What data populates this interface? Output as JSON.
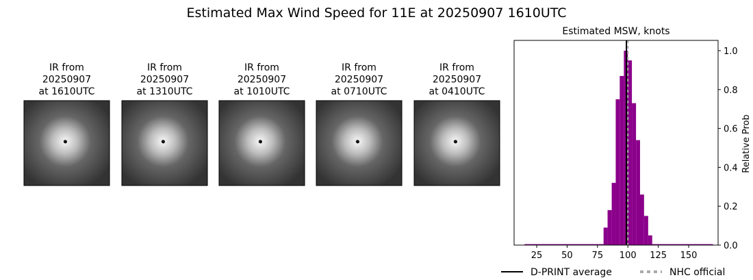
{
  "title": "Estimated Max Wind Speed for 11E at 20250907 1610UTC",
  "panels": [
    {
      "label": [
        "IR from",
        "20250907",
        "at 1610UTC"
      ]
    },
    {
      "label": [
        "IR from",
        "20250907",
        "at 1310UTC"
      ]
    },
    {
      "label": [
        "IR from",
        "20250907",
        "at 1010UTC"
      ]
    },
    {
      "label": [
        "IR from",
        "20250907",
        "at 0710UTC"
      ]
    },
    {
      "label": [
        "IR from",
        "20250907",
        "at 0410UTC"
      ]
    }
  ],
  "chart_data": {
    "type": "histogram",
    "title": "Estimated MSW, knots",
    "ylabel": "Relative Prob",
    "bins": [
      15,
      80,
      83.3,
      86.7,
      90,
      93.3,
      96.7,
      100,
      103.3,
      106.7,
      110,
      113.3,
      116.7,
      120,
      170
    ],
    "values": [
      0.005,
      0.09,
      0.18,
      0.32,
      0.75,
      0.87,
      1.0,
      0.95,
      0.73,
      0.54,
      0.26,
      0.15,
      0.05,
      0.005
    ],
    "color": "#8b008b",
    "xlim": [
      6.4,
      174.2
    ],
    "ylim": [
      0,
      1.053
    ],
    "xticks": [
      25,
      50,
      75,
      100,
      125,
      150
    ],
    "yticks": [
      {
        "value": 0,
        "label": "0.0"
      },
      0.2,
      0.4,
      0.6,
      0.8,
      {
        "value": 1,
        "label": "1.0"
      }
    ],
    "vlines": [
      {
        "name": "D-PRINT average",
        "value": 98.8,
        "color": "#000000",
        "style": "solid"
      },
      {
        "name": "NHC official",
        "value": 100,
        "color": "#aaaaaa",
        "style": "dashed"
      }
    ]
  }
}
